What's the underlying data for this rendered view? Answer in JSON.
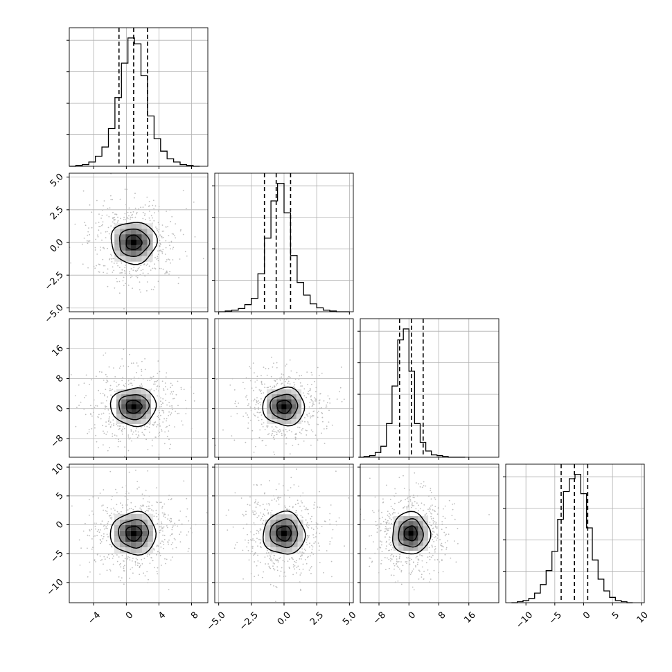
{
  "chart_data": {
    "type": "corner",
    "grid": true,
    "colors": {
      "hist": "#000000",
      "quantile": "#000000",
      "grid": "#b0b0b0",
      "scatter": "#bdbdbd",
      "contour": "#000000"
    },
    "parameters": [
      {
        "range": [
          -7,
          10
        ],
        "ticks": [
          -4,
          0,
          4,
          8
        ],
        "tick_labels": [
          "−4",
          "0",
          "4",
          "8"
        ],
        "quantiles": [
          -0.9,
          0.9,
          2.6
        ],
        "center": [
          0.9,
          -0.5
        ],
        "hist": {
          "edges": [
            -7,
            -6.2,
            -5.4,
            -4.6,
            -3.8,
            -3.0,
            -2.2,
            -1.4,
            -0.6,
            0.2,
            1.0,
            1.8,
            2.6,
            3.4,
            4.2,
            5.0,
            5.8,
            6.6,
            7.4,
            8.2,
            9.0
          ],
          "counts": [
            0,
            1,
            2,
            5,
            12,
            23,
            45,
            82,
            123,
            153,
            146,
            108,
            60,
            33,
            18,
            9,
            5,
            2,
            1,
            0
          ]
        }
      },
      {
        "range": [
          -5.3,
          5.3
        ],
        "ticks": [
          -5.0,
          -2.5,
          0.0,
          2.5,
          5.0
        ],
        "tick_labels": [
          "−5.0",
          "−2.5",
          "0.0",
          "2.5",
          "5.0"
        ],
        "quantiles": [
          -1.5,
          -0.6,
          0.5
        ],
        "hist": {
          "edges": [
            -5.0,
            -4.5,
            -4.0,
            -3.5,
            -3.0,
            -2.5,
            -2.0,
            -1.5,
            -1.0,
            -0.5,
            0.0,
            0.5,
            1.0,
            1.5,
            2.0,
            2.5,
            3.0,
            3.5,
            4.0,
            4.5,
            5.0
          ],
          "counts": [
            0,
            1,
            2,
            4,
            9,
            17,
            48,
            93,
            140,
            162,
            125,
            71,
            37,
            21,
            10,
            5,
            2,
            1,
            0,
            0
          ]
        }
      },
      {
        "range": [
          -13,
          24
        ],
        "ticks": [
          -8,
          0,
          8,
          16
        ],
        "tick_labels": [
          "−8",
          "0",
          "8",
          "16"
        ],
        "quantiles": [
          -2.5,
          0.7,
          3.8
        ],
        "center": [
          0.5
        ],
        "hist": {
          "edges": [
            -13.5,
            -12.0,
            -10.5,
            -9.0,
            -7.5,
            -6.0,
            -4.5,
            -3.0,
            -1.5,
            0.0,
            1.5,
            3.0,
            4.5,
            6.0,
            7.5,
            9.0,
            10.5,
            12.0,
            13.5,
            15.0
          ],
          "counts": [
            0,
            1,
            2,
            6,
            14,
            43,
            91,
            150,
            164,
            110,
            43,
            19,
            8,
            3,
            2,
            1,
            0,
            0,
            0
          ]
        }
      },
      {
        "range": [
          -13.5,
          10.5
        ],
        "ticks": [
          -10,
          -5,
          0,
          5,
          10
        ],
        "tick_labels": [
          "−10",
          "−5",
          "0",
          "5",
          "10"
        ],
        "quantiles": [
          -3.9,
          -1.6,
          0.7
        ],
        "center": [
          -1.5
        ],
        "hist": {
          "edges": [
            -12.5,
            -11.5,
            -10.5,
            -9.5,
            -8.5,
            -7.5,
            -6.5,
            -5.5,
            -4.5,
            -3.5,
            -2.5,
            -1.5,
            -0.5,
            0.5,
            1.5,
            2.5,
            3.5,
            4.5,
            5.5,
            6.5,
            7.5,
            8.5
          ],
          "counts": [
            0,
            1,
            2,
            4,
            9,
            17,
            30,
            48,
            78,
            104,
            116,
            120,
            102,
            70,
            40,
            22,
            11,
            5,
            2,
            1,
            0
          ]
        }
      }
    ]
  }
}
